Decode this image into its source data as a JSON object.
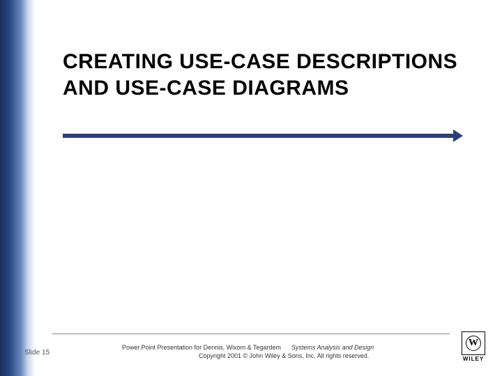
{
  "title": "CREATING USE-CASE DESCRIPTIONS AND USE-CASE DIAGRAMS",
  "slide_number": "Slide 15",
  "footer": {
    "presentation_text": "Power.Point Presentation for Dennis, Wixom & Tegardem",
    "book_title": "Systems Analysis and Design",
    "copyright": "Copyright 2001 © John Wiley & Sons, Inc.  All rights reserved."
  },
  "logo": {
    "symbol": "W",
    "brand": "WILEY"
  },
  "colors": {
    "gradient_dark": "#1a2e5c",
    "gradient_light": "#ffffff",
    "underline": "#2a3f7a",
    "title_text": "#000000",
    "footer_text": "#333333"
  },
  "typography": {
    "title_fontsize": 30,
    "title_weight": "bold",
    "footer_fontsize": 9,
    "slidenum_fontsize": 10
  }
}
